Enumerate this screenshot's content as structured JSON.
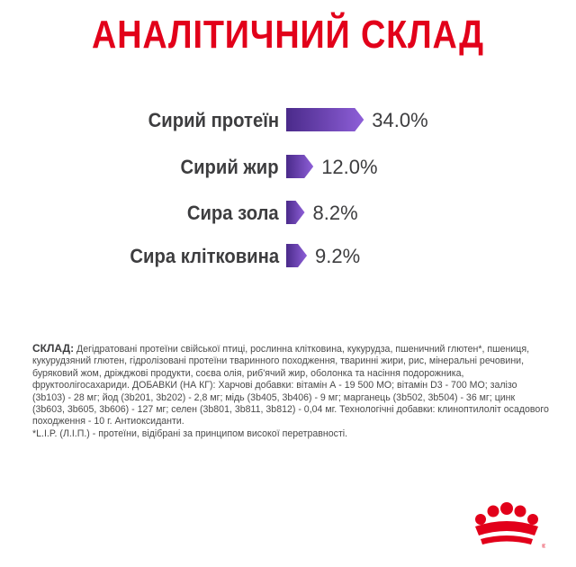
{
  "title": "АНАЛІТИЧНИЙ СКЛАД",
  "analysis": [
    {
      "label": "Сирий протеїн",
      "value": "34.0%",
      "percent": 34.0
    },
    {
      "label": "Сирий жир",
      "value": "12.0%",
      "percent": 12.0
    },
    {
      "label": "Сира зола",
      "value": "8.2%",
      "percent": 8.2
    },
    {
      "label": "Сира клітковина",
      "value": "9.2%",
      "percent": 9.2
    }
  ],
  "composition": {
    "heading": "СКЛАД:",
    "text": "Дегідратовані протеїни свійської птиці, рослинна клітковина, кукурудза, пшеничний глютен*, пшениця, кукурудзяний глютен, гідролізовані протеїни тваринного походження, тваринні жири, рис, мінеральні речовини, буряковий жом, дріжджові продукти, соєва олія, риб'ячий жир, оболонка та насіння подорожника, фруктоолігосахариди. ДОБАВКИ (НА КГ): Харчові добавки: вітамін А - 19 500 МО; вітамін D3 - 700 МО; залізо (3b103) - 28 мг; йод (3b201, 3b202) - 2,8 мг; мідь (3b405, 3b406) - 9 мг; марганець (3b502, 3b504) - 36 мг; цинк (3b603, 3b605, 3b606) - 127 мг; селен (3b801, 3b811, 3b812) - 0,04 мг. Технологічні добавки: клиноптилоліт осадового походження - 10 г. Антиоксиданти.",
    "footnote": "*L.I.P. (Л.І.П.) - протеїни, відібрані за принципом високої перетравності."
  },
  "colors": {
    "title": "#e2001a",
    "bar_start": "#4a2a8a",
    "bar_end": "#8e5fd8",
    "text": "#3d3d3f",
    "logo": "#e2001a"
  },
  "icons": {
    "logo": "crown-icon"
  }
}
